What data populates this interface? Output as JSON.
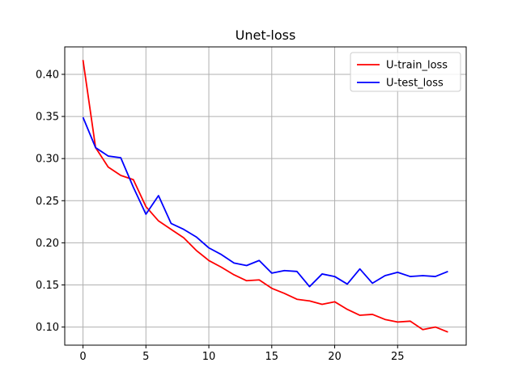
{
  "chart_data": {
    "type": "line",
    "title": "Unet-loss",
    "xlabel": "",
    "ylabel": "",
    "xlim": [
      -1.45,
      30.45
    ],
    "ylim": [
      0.0785,
      0.4326
    ],
    "xticks": [
      0,
      5,
      10,
      15,
      20,
      25
    ],
    "yticks": [
      0.1,
      0.15,
      0.2,
      0.25,
      0.3,
      0.35,
      0.4
    ],
    "xtick_labels": [
      "0",
      "5",
      "10",
      "15",
      "20",
      "25"
    ],
    "ytick_labels": [
      "0.10",
      "0.15",
      "0.20",
      "0.25",
      "0.30",
      "0.35",
      "0.40"
    ],
    "grid": true,
    "legend_position": "top-right",
    "x": [
      0,
      1,
      2,
      3,
      4,
      5,
      6,
      7,
      8,
      9,
      10,
      11,
      12,
      13,
      14,
      15,
      16,
      17,
      18,
      19,
      20,
      21,
      22,
      23,
      24,
      25,
      26,
      27,
      28,
      29
    ],
    "series": [
      {
        "name": "U-train_loss",
        "color": "#ff0000",
        "values": [
          0.417,
          0.313,
          0.29,
          0.28,
          0.275,
          0.243,
          0.226,
          0.216,
          0.206,
          0.191,
          0.179,
          0.171,
          0.162,
          0.155,
          0.156,
          0.146,
          0.14,
          0.133,
          0.131,
          0.127,
          0.13,
          0.121,
          0.114,
          0.115,
          0.109,
          0.106,
          0.107,
          0.097,
          0.1,
          0.094
        ]
      },
      {
        "name": "U-test_loss",
        "color": "#0000ff",
        "values": [
          0.349,
          0.313,
          0.303,
          0.301,
          0.266,
          0.234,
          0.256,
          0.223,
          0.216,
          0.207,
          0.194,
          0.186,
          0.176,
          0.173,
          0.179,
          0.164,
          0.167,
          0.166,
          0.148,
          0.163,
          0.16,
          0.151,
          0.169,
          0.152,
          0.161,
          0.165,
          0.16,
          0.161,
          0.16,
          0.166
        ]
      }
    ]
  }
}
